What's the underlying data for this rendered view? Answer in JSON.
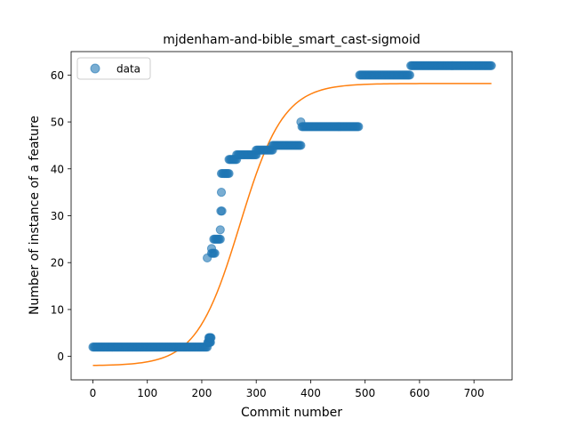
{
  "chart_data": {
    "type": "scatter",
    "title": "mjdenham-and-bible_smart_cast-sigmoid",
    "xlabel": "Commit number",
    "ylabel": "Number of instance of a feature",
    "xlim": [
      -40,
      770
    ],
    "ylim": [
      -5,
      65
    ],
    "xticks": [
      0,
      100,
      200,
      300,
      400,
      500,
      600,
      700
    ],
    "yticks": [
      0,
      10,
      20,
      30,
      40,
      50,
      60
    ],
    "grid": false,
    "legend": {
      "position": "top-left",
      "entries": [
        "data"
      ]
    },
    "colors": {
      "data": "#1f77b4",
      "fit": "#ff7f0e"
    },
    "series": [
      {
        "name": "data",
        "kind": "scatter",
        "runs": [
          {
            "x_start": 0,
            "x_end": 210,
            "step": 2,
            "y": 2
          },
          {
            "x_start": 211,
            "x_end": 216,
            "step": 1,
            "y": 3
          },
          {
            "x_start": 213,
            "x_end": 217,
            "step": 1,
            "y": 4
          },
          {
            "x_start": 218,
            "x_end": 224,
            "step": 2,
            "y": 22
          },
          {
            "x_start": 222,
            "x_end": 234,
            "step": 2,
            "y": 25
          },
          {
            "x_start": 236,
            "x_end": 250,
            "step": 2,
            "y": 39
          },
          {
            "x_start": 250,
            "x_end": 264,
            "step": 2,
            "y": 42
          },
          {
            "x_start": 264,
            "x_end": 300,
            "step": 2,
            "y": 43
          },
          {
            "x_start": 300,
            "x_end": 330,
            "step": 2,
            "y": 44
          },
          {
            "x_start": 330,
            "x_end": 383,
            "step": 2,
            "y": 45
          },
          {
            "x_start": 384,
            "x_end": 488,
            "step": 2,
            "y": 49
          },
          {
            "x_start": 490,
            "x_end": 583,
            "step": 2,
            "y": 60
          },
          {
            "x_start": 584,
            "x_end": 732,
            "step": 2,
            "y": 62
          }
        ],
        "points": [
          {
            "x": 210,
            "y": 21
          },
          {
            "x": 218,
            "y": 23
          },
          {
            "x": 234,
            "y": 27
          },
          {
            "x": 235,
            "y": 31
          },
          {
            "x": 237,
            "y": 31
          },
          {
            "x": 236,
            "y": 35
          },
          {
            "x": 382,
            "y": 50
          }
        ]
      },
      {
        "kind": "line",
        "x_start": 0,
        "x_end": 732,
        "x_step": 6,
        "sigmoid": {
          "lower": -2,
          "upper": 58.2,
          "midpoint": 270,
          "rate": 0.025
        }
      }
    ]
  }
}
